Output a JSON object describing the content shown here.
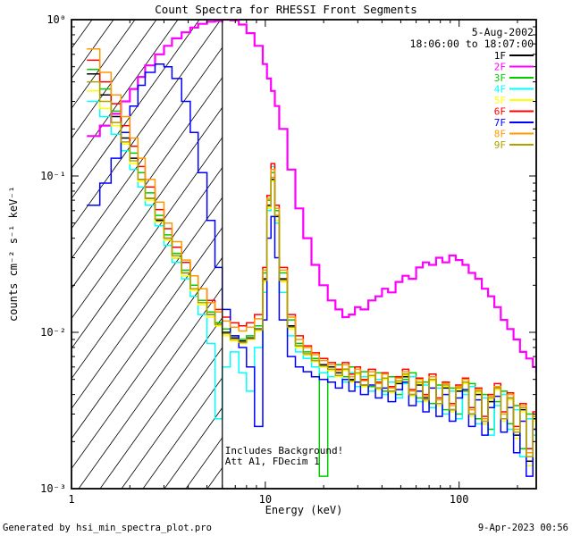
{
  "footer": {
    "left": "Generated by hsi_min_spectra_plot.pro",
    "right": "9-Apr-2023 00:56"
  },
  "chart_data": {
    "type": "line",
    "style": "log-log step spectra",
    "title": "Count Spectra for RHESSI Front Segments",
    "subtitle_lines": [
      "5-Aug-2002",
      "18:06:00 to 18:07:00"
    ],
    "xlabel": "Energy (keV)",
    "ylabel": "counts cm⁻² s⁻¹ keV⁻¹",
    "xscale": "log",
    "yscale": "log",
    "xlim": [
      1,
      250
    ],
    "ylim": [
      0.001,
      1.0
    ],
    "grid": false,
    "legend_position": "upper right",
    "x_ticks": [
      {
        "value": 1,
        "label": "1"
      },
      {
        "value": 10,
        "label": "10"
      },
      {
        "value": 100,
        "label": "100"
      }
    ],
    "y_ticks": [
      {
        "value": 1,
        "label": "10⁰"
      },
      {
        "value": 0.1,
        "label": "10⁻¹"
      },
      {
        "value": 0.01,
        "label": "10⁻²"
      },
      {
        "value": 0.001,
        "label": "10⁻³"
      }
    ],
    "annotations": [
      "Includes Background!",
      "Att A1, FDecim 1"
    ],
    "shaded_region": {
      "from": 1,
      "to": 6,
      "style": "diagonal-hatch"
    },
    "vline_energy": 6,
    "energies": [
      1.2,
      1.4,
      1.6,
      1.8,
      2.0,
      2.2,
      2.4,
      2.7,
      3.0,
      3.3,
      3.7,
      4.1,
      4.5,
      5.0,
      5.5,
      6.0,
      6.6,
      7.3,
      8.0,
      8.8,
      9.7,
      10.2,
      10.7,
      11.2,
      11.8,
      13.0,
      14.3,
      15.7,
      17.3,
      19.0,
      21,
      23,
      25,
      27,
      29,
      31,
      34,
      37,
      40,
      43,
      47,
      51,
      55,
      60,
      65,
      70,
      76,
      82,
      89,
      96,
      104,
      112,
      121,
      131,
      141,
      152,
      164,
      177,
      191,
      206,
      222,
      240,
      250
    ],
    "series": [
      {
        "name": "1F",
        "color": "#000000",
        "values": [
          0.45,
          0.33,
          0.24,
          0.175,
          0.13,
          0.095,
          0.072,
          0.052,
          0.04,
          0.03,
          0.024,
          0.019,
          0.0155,
          0.013,
          0.0115,
          0.01,
          0.0092,
          0.0088,
          0.0092,
          0.0105,
          0.022,
          0.065,
          0.095,
          0.055,
          0.022,
          0.011,
          0.0082,
          0.0072,
          0.0066,
          0.0062,
          0.006,
          0.0055,
          0.0058,
          0.005,
          0.0054,
          0.0046,
          0.0052,
          0.0044,
          0.005,
          0.0042,
          0.0047,
          0.0052,
          0.004,
          0.0046,
          0.0038,
          0.005,
          0.0035,
          0.0044,
          0.0032,
          0.0042,
          0.0048,
          0.003,
          0.004,
          0.0026,
          0.0036,
          0.0044,
          0.0028,
          0.0038,
          0.0022,
          0.0032,
          0.0015,
          0.0028,
          0.0035
        ]
      },
      {
        "name": "2F",
        "color": "#ff00ff",
        "values": [
          0.18,
          0.21,
          0.25,
          0.3,
          0.36,
          0.43,
          0.51,
          0.6,
          0.68,
          0.76,
          0.83,
          0.89,
          0.94,
          0.97,
          0.98,
          1.0,
          0.99,
          0.93,
          0.82,
          0.68,
          0.52,
          0.42,
          0.35,
          0.28,
          0.2,
          0.11,
          0.062,
          0.04,
          0.027,
          0.02,
          0.016,
          0.014,
          0.0125,
          0.013,
          0.0145,
          0.014,
          0.016,
          0.017,
          0.019,
          0.018,
          0.021,
          0.023,
          0.022,
          0.026,
          0.028,
          0.027,
          0.03,
          0.028,
          0.031,
          0.029,
          0.027,
          0.024,
          0.022,
          0.019,
          0.017,
          0.0145,
          0.012,
          0.0105,
          0.009,
          0.0075,
          0.0068,
          0.006,
          0.0055
        ]
      },
      {
        "name": "3F",
        "color": "#00cc00",
        "values": [
          0.48,
          0.36,
          0.26,
          0.19,
          0.14,
          0.105,
          0.078,
          0.056,
          0.042,
          0.032,
          0.025,
          0.02,
          0.016,
          0.0135,
          0.0115,
          0.0105,
          0.0095,
          0.009,
          0.0095,
          0.011,
          0.024,
          0.07,
          0.105,
          0.06,
          0.024,
          0.012,
          0.0085,
          0.0075,
          0.0068,
          0.0012,
          0.0058,
          0.0062,
          0.0052,
          0.006,
          0.0048,
          0.0056,
          0.0045,
          0.0055,
          0.0042,
          0.0052,
          0.004,
          0.005,
          0.0055,
          0.0038,
          0.0048,
          0.0035,
          0.0046,
          0.0032,
          0.0044,
          0.003,
          0.0042,
          0.0047,
          0.0028,
          0.004,
          0.0024,
          0.0036,
          0.0042,
          0.0026,
          0.0034,
          0.0018,
          0.003,
          0.0024,
          0.0032
        ]
      },
      {
        "name": "4F",
        "color": "#00ffff",
        "values": [
          0.3,
          0.24,
          0.185,
          0.145,
          0.11,
          0.085,
          0.065,
          0.048,
          0.036,
          0.028,
          0.022,
          0.017,
          0.013,
          0.0085,
          0.0028,
          0.006,
          0.0075,
          0.0055,
          0.0042,
          0.008,
          0.018,
          0.06,
          0.115,
          0.05,
          0.018,
          0.0095,
          0.0075,
          0.0068,
          0.006,
          0.0055,
          0.0052,
          0.0058,
          0.0048,
          0.0055,
          0.0045,
          0.0052,
          0.0042,
          0.005,
          0.004,
          0.0048,
          0.0038,
          0.0047,
          0.0052,
          0.0036,
          0.0046,
          0.0033,
          0.0044,
          0.003,
          0.0042,
          0.0028,
          0.004,
          0.0045,
          0.0026,
          0.0038,
          0.0022,
          0.0034,
          0.004,
          0.0024,
          0.0032,
          0.0016,
          0.0028,
          0.0022,
          0.003
        ]
      },
      {
        "name": "5F",
        "color": "#ffff00",
        "values": [
          0.35,
          0.27,
          0.21,
          0.16,
          0.12,
          0.092,
          0.07,
          0.051,
          0.039,
          0.03,
          0.023,
          0.0185,
          0.015,
          0.0125,
          0.011,
          0.0095,
          0.0088,
          0.0085,
          0.009,
          0.0102,
          0.021,
          0.062,
          0.092,
          0.052,
          0.021,
          0.0105,
          0.008,
          0.0072,
          0.0065,
          0.006,
          0.0057,
          0.0052,
          0.0057,
          0.0048,
          0.0054,
          0.0045,
          0.0052,
          0.0043,
          0.005,
          0.0041,
          0.0048,
          0.0053,
          0.0039,
          0.0047,
          0.0036,
          0.0049,
          0.0034,
          0.0045,
          0.0031,
          0.0043,
          0.0047,
          0.0029,
          0.0041,
          0.0026,
          0.0037,
          0.0043,
          0.0027,
          0.0037,
          0.0021,
          0.0031,
          0.0014,
          0.0027,
          0.0033
        ]
      },
      {
        "name": "6F",
        "color": "#ff0000",
        "values": [
          0.55,
          0.4,
          0.29,
          0.21,
          0.155,
          0.115,
          0.085,
          0.061,
          0.046,
          0.035,
          0.028,
          0.023,
          0.019,
          0.016,
          0.014,
          0.0125,
          0.0115,
          0.011,
          0.0115,
          0.013,
          0.026,
          0.075,
          0.12,
          0.065,
          0.026,
          0.013,
          0.0095,
          0.0082,
          0.0074,
          0.0068,
          0.0064,
          0.0058,
          0.0064,
          0.0054,
          0.006,
          0.005,
          0.0058,
          0.0048,
          0.0055,
          0.0045,
          0.0052,
          0.0058,
          0.0043,
          0.0051,
          0.004,
          0.0054,
          0.0038,
          0.0048,
          0.0035,
          0.0046,
          0.0051,
          0.0033,
          0.0044,
          0.0029,
          0.004,
          0.0047,
          0.0031,
          0.0041,
          0.0025,
          0.0035,
          0.0018,
          0.0031,
          0.0038
        ]
      },
      {
        "name": "7F",
        "color": "#0000ff",
        "values": [
          0.065,
          0.09,
          0.13,
          0.19,
          0.28,
          0.38,
          0.46,
          0.52,
          0.5,
          0.42,
          0.3,
          0.19,
          0.105,
          0.052,
          0.026,
          0.014,
          0.0095,
          0.008,
          0.006,
          0.0025,
          0.012,
          0.04,
          0.055,
          0.03,
          0.012,
          0.007,
          0.006,
          0.0056,
          0.0052,
          0.005,
          0.0048,
          0.0044,
          0.005,
          0.0042,
          0.0048,
          0.004,
          0.0046,
          0.0038,
          0.0044,
          0.0036,
          0.0043,
          0.0048,
          0.0034,
          0.0042,
          0.0031,
          0.0044,
          0.0029,
          0.004,
          0.0027,
          0.0038,
          0.0043,
          0.0025,
          0.0037,
          0.0022,
          0.0033,
          0.0039,
          0.0023,
          0.0033,
          0.0017,
          0.0027,
          0.0012,
          0.0024,
          0.003
        ]
      },
      {
        "name": "8F",
        "color": "#ff9900",
        "values": [
          0.65,
          0.46,
          0.33,
          0.24,
          0.175,
          0.13,
          0.095,
          0.068,
          0.05,
          0.038,
          0.029,
          0.023,
          0.019,
          0.0155,
          0.0135,
          0.0118,
          0.0108,
          0.0102,
          0.0108,
          0.0122,
          0.025,
          0.072,
          0.11,
          0.062,
          0.025,
          0.0125,
          0.009,
          0.008,
          0.0072,
          0.0066,
          0.0062,
          0.0057,
          0.0062,
          0.0052,
          0.0058,
          0.0049,
          0.0056,
          0.0047,
          0.0054,
          0.0044,
          0.0051,
          0.0056,
          0.0042,
          0.005,
          0.0039,
          0.0052,
          0.0037,
          0.0047,
          0.0034,
          0.0045,
          0.005,
          0.0032,
          0.0043,
          0.0028,
          0.0039,
          0.0045,
          0.003,
          0.004,
          0.0024,
          0.0034,
          0.0017,
          0.003,
          0.0037
        ]
      },
      {
        "name": "9F",
        "color": "#b0a000",
        "values": [
          0.4,
          0.3,
          0.22,
          0.165,
          0.125,
          0.095,
          0.072,
          0.053,
          0.04,
          0.031,
          0.024,
          0.019,
          0.0155,
          0.013,
          0.0112,
          0.0098,
          0.009,
          0.0086,
          0.0091,
          0.0104,
          0.0215,
          0.064,
          0.098,
          0.056,
          0.0215,
          0.0108,
          0.0082,
          0.0073,
          0.0066,
          0.0061,
          0.0058,
          0.0053,
          0.0058,
          0.0049,
          0.0055,
          0.0046,
          0.0053,
          0.0044,
          0.0051,
          0.0042,
          0.0049,
          0.0054,
          0.004,
          0.0048,
          0.0037,
          0.005,
          0.0035,
          0.0046,
          0.0032,
          0.0044,
          0.0048,
          0.003,
          0.0042,
          0.0027,
          0.0038,
          0.0044,
          0.0028,
          0.0038,
          0.0023,
          0.0033,
          0.0016,
          0.0029,
          0.0034
        ]
      }
    ]
  }
}
